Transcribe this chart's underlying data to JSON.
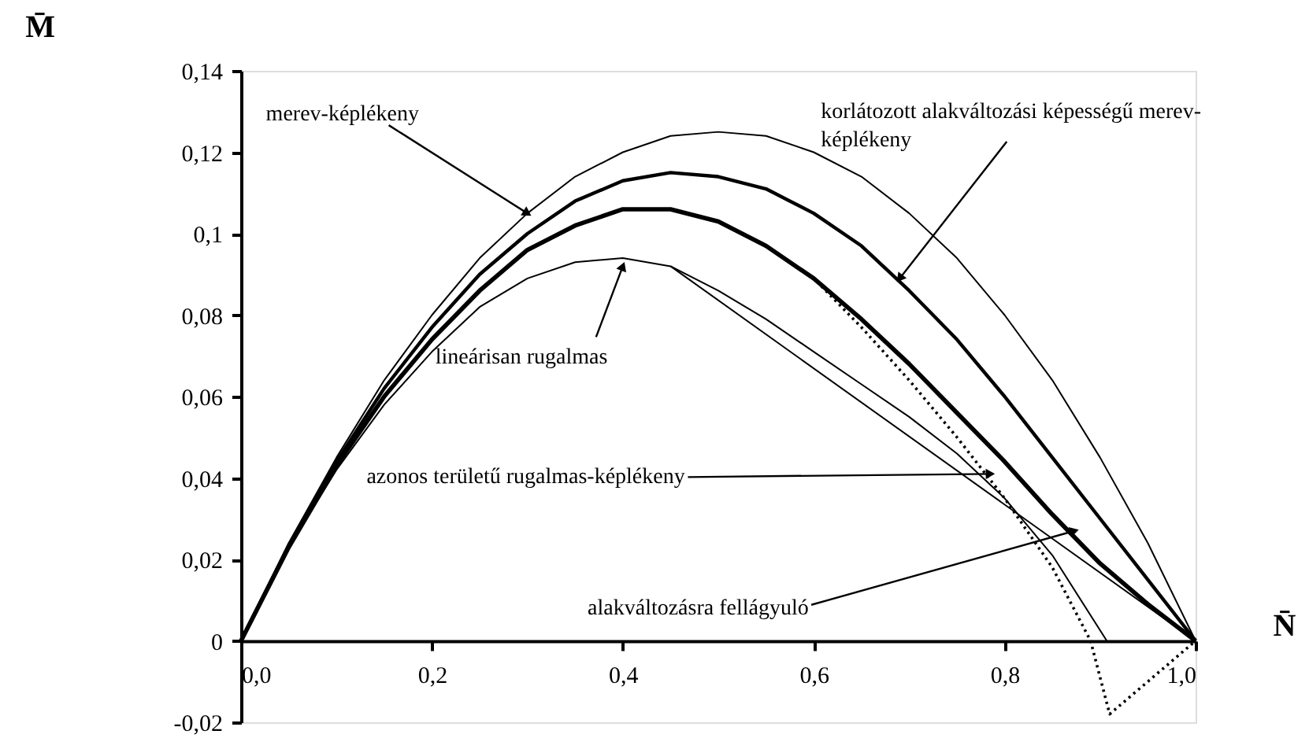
{
  "chart_data": {
    "type": "line",
    "xlabel": "N̄",
    "ylabel": "M̄",
    "xlim": [
      0,
      1.0
    ],
    "ylim": [
      -0.02,
      0.14
    ],
    "xticks": [
      {
        "value": 0,
        "label": "0,0"
      },
      {
        "value": 0.2,
        "label": "0,2"
      },
      {
        "value": 0.4,
        "label": "0,4"
      },
      {
        "value": 0.6,
        "label": "0,6"
      },
      {
        "value": 0.8,
        "label": "0,8"
      },
      {
        "value": 1.0,
        "label": "1,0"
      }
    ],
    "yticks": [
      {
        "value": -0.02,
        "label": "-0,02"
      },
      {
        "value": 0,
        "label": "0"
      },
      {
        "value": 0.02,
        "label": "0,02"
      },
      {
        "value": 0.04,
        "label": "0,04"
      },
      {
        "value": 0.06,
        "label": "0,06"
      },
      {
        "value": 0.08,
        "label": "0,08"
      },
      {
        "value": 0.1,
        "label": "0,1"
      },
      {
        "value": 0.12,
        "label": "0,12"
      },
      {
        "value": 0.14,
        "label": "0,14"
      }
    ],
    "grid": false,
    "marker": "none",
    "series": [
      {
        "color": "#000000",
        "line_style": "solid",
        "x": [
          0,
          0.05,
          0.1,
          0.15,
          0.2,
          0.25,
          0.3,
          0.35,
          0.4,
          0.45,
          0.5,
          0.55,
          0.6,
          0.65,
          0.7,
          0.75,
          0.8,
          0.85,
          0.9,
          0.95,
          1.0
        ],
        "values": [
          0,
          0.024,
          0.045,
          0.064,
          0.08,
          0.094,
          0.105,
          0.114,
          0.12,
          0.124,
          0.125,
          0.124,
          0.12,
          0.114,
          0.105,
          0.094,
          0.08,
          0.064,
          0.045,
          0.024,
          0
        ]
      },
      {
        "color": "#000000",
        "line_style": "solid",
        "x": [
          0,
          0.05,
          0.1,
          0.15,
          0.2,
          0.25,
          0.3,
          0.35,
          0.4,
          0.45,
          0.5,
          0.55,
          0.6,
          0.65,
          0.7,
          0.75,
          0.8,
          0.85,
          0.9,
          0.95,
          1.0
        ],
        "values": [
          0,
          0.0235,
          0.044,
          0.062,
          0.077,
          0.09,
          0.1,
          0.108,
          0.113,
          0.115,
          0.114,
          0.111,
          0.105,
          0.097,
          0.086,
          0.074,
          0.06,
          0.045,
          0.03,
          0.015,
          0
        ]
      },
      {
        "color": "#000000",
        "line_style": "solid",
        "x": [
          0,
          0.05,
          0.1,
          0.15,
          0.2,
          0.25,
          0.3,
          0.35,
          0.4,
          0.45,
          0.5,
          0.55,
          0.6,
          0.65,
          0.7,
          0.75,
          0.8,
          0.85,
          0.9,
          0.95,
          1.0
        ],
        "values": [
          0,
          0.023,
          0.043,
          0.06,
          0.074,
          0.086,
          0.096,
          0.102,
          0.106,
          0.106,
          0.103,
          0.097,
          0.089,
          0.079,
          0.068,
          0.056,
          0.044,
          0.031,
          0.019,
          0.009,
          0
        ]
      },
      {
        "color": "#000000",
        "line_style": "dotted",
        "x": [
          0,
          0.05,
          0.1,
          0.15,
          0.2,
          0.25,
          0.3,
          0.35,
          0.4,
          0.45,
          0.5,
          0.55,
          0.6,
          0.65,
          0.7,
          0.75,
          0.8,
          0.85,
          0.89,
          0.91,
          1.0
        ],
        "values": [
          0,
          0.023,
          0.043,
          0.06,
          0.074,
          0.086,
          0.096,
          0.102,
          0.106,
          0.106,
          0.103,
          0.097,
          0.089,
          0.077,
          0.064,
          0.05,
          0.035,
          0.018,
          0,
          -0.018,
          0
        ]
      },
      {
        "color": "#000000",
        "line_style": "solid",
        "x": [
          0,
          0.05,
          0.1,
          0.15,
          0.2,
          0.25,
          0.3,
          0.35,
          0.4,
          0.45,
          0.5,
          0.55,
          0.6,
          0.65,
          0.7,
          0.75,
          0.8,
          0.85,
          0.907
        ],
        "values": [
          0,
          0.023,
          0.042,
          0.058,
          0.071,
          0.082,
          0.089,
          0.093,
          0.094,
          0.092,
          0.086,
          0.079,
          0.071,
          0.063,
          0.055,
          0.046,
          0.035,
          0.021,
          0
        ]
      },
      {
        "color": "#000000",
        "line_style": "solid",
        "x": [
          0.45,
          1.0
        ],
        "values": [
          0.092,
          0
        ]
      }
    ],
    "annotations": [
      {
        "text": "merev-képlékeny",
        "x": 0.3,
        "y": 0.105
      },
      {
        "text": "lineárisan rugalmas",
        "x": 0.4,
        "y": 0.092
      },
      {
        "text": "korlátozott alakváltozási képességű merev-\nképlékeny",
        "x": 0.69,
        "y": 0.089
      },
      {
        "text": "azonos területű rugalmas-képlékeny",
        "x": 0.785,
        "y": 0.041
      },
      {
        "text": "alakváltozásra fellágyuló",
        "x": 0.873,
        "y": 0.027
      }
    ]
  }
}
